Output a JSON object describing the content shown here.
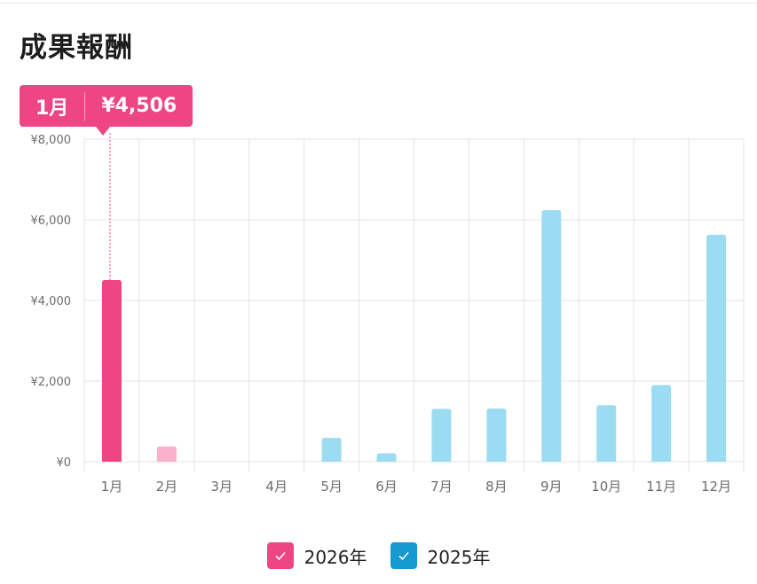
{
  "title": "成果報酬",
  "tooltip": {
    "month": "1月",
    "value": "¥4,506"
  },
  "colors": {
    "s2026": "#ee4584",
    "s2026_light": "#fbb0cb",
    "s2025": "#9bdcf2",
    "s2025_check": "#1699cf",
    "grid": "#e3e3e3",
    "axis_text": "#6d6d6d"
  },
  "legend": [
    {
      "label": "2026年",
      "color": "#ee4584",
      "icon": "check-icon"
    },
    {
      "label": "2025年",
      "color": "#1699cf",
      "icon": "check-icon"
    }
  ],
  "chart_data": {
    "type": "bar",
    "categories": [
      "1月",
      "2月",
      "3月",
      "4月",
      "5月",
      "6月",
      "7月",
      "8月",
      "9月",
      "10月",
      "11月",
      "12月"
    ],
    "series": [
      {
        "name": "2026年",
        "values": [
          4506,
          380,
          0,
          0,
          null,
          null,
          null,
          null,
          null,
          null,
          null,
          null
        ]
      },
      {
        "name": "2025年",
        "values": [
          0,
          0,
          0,
          0,
          590,
          210,
          1310,
          1320,
          6240,
          1400,
          1900,
          5630
        ]
      }
    ],
    "ylim": [
      0,
      8000
    ],
    "yticks": [
      0,
      2000,
      4000,
      6000,
      8000
    ],
    "ytick_labels": [
      "¥0",
      "¥2,000",
      "¥4,000",
      "¥6,000",
      "¥8,000"
    ],
    "highlight_category": "1月",
    "grid": true,
    "legend_position": "bottom"
  }
}
